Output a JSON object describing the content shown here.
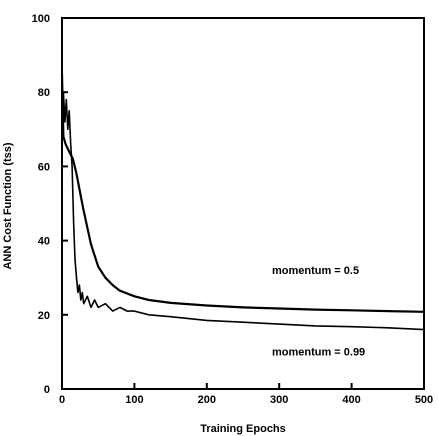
{
  "chart_data": {
    "type": "line",
    "title": "",
    "xlabel": "Training Epochs",
    "ylabel": "ANN Cost Function (tss)",
    "xlim": [
      0,
      500
    ],
    "ylim": [
      0,
      100
    ],
    "x_ticks": [
      0,
      100,
      200,
      300,
      400,
      500
    ],
    "y_ticks": [
      0,
      20,
      40,
      60,
      80,
      100
    ],
    "x_tick_labels": [
      "0",
      "100",
      "200",
      "300",
      "400",
      "500"
    ],
    "y_tick_labels": [
      "0",
      "20",
      "40",
      "60",
      "80",
      "100"
    ],
    "grid": false,
    "legend": "none",
    "annotations": [
      {
        "text": "momentum = 0.5",
        "x": 290,
        "y": 31
      },
      {
        "text": "momentum = 0.99",
        "x": 290,
        "y": 9
      }
    ],
    "series": [
      {
        "label": "momentum = 0.5",
        "x": [
          0,
          2,
          5,
          10,
          15,
          20,
          25,
          30,
          40,
          50,
          60,
          70,
          80,
          100,
          120,
          150,
          200,
          250,
          300,
          350,
          400,
          450,
          500
        ],
        "y": [
          85,
          68,
          66,
          64,
          62,
          58,
          53,
          48,
          39,
          33,
          30,
          28,
          26.5,
          25,
          24,
          23.2,
          22.5,
          22,
          21.7,
          21.4,
          21.2,
          21,
          20.8
        ]
      },
      {
        "label": "momentum = 0.99",
        "x": [
          0,
          2,
          4,
          6,
          8,
          10,
          12,
          14,
          16,
          18,
          20,
          22,
          24,
          26,
          28,
          30,
          35,
          40,
          45,
          50,
          60,
          70,
          80,
          90,
          100,
          120,
          150,
          200,
          250,
          300,
          350,
          400,
          450,
          500
        ],
        "y": [
          70,
          80,
          72,
          78,
          70,
          75,
          66,
          60,
          45,
          35,
          30,
          26,
          28,
          24,
          26,
          23,
          25,
          22,
          24,
          22,
          23,
          21,
          22,
          21,
          21,
          20,
          19.5,
          18.5,
          18,
          17.5,
          17,
          16.8,
          16.5,
          16
        ]
      }
    ]
  }
}
